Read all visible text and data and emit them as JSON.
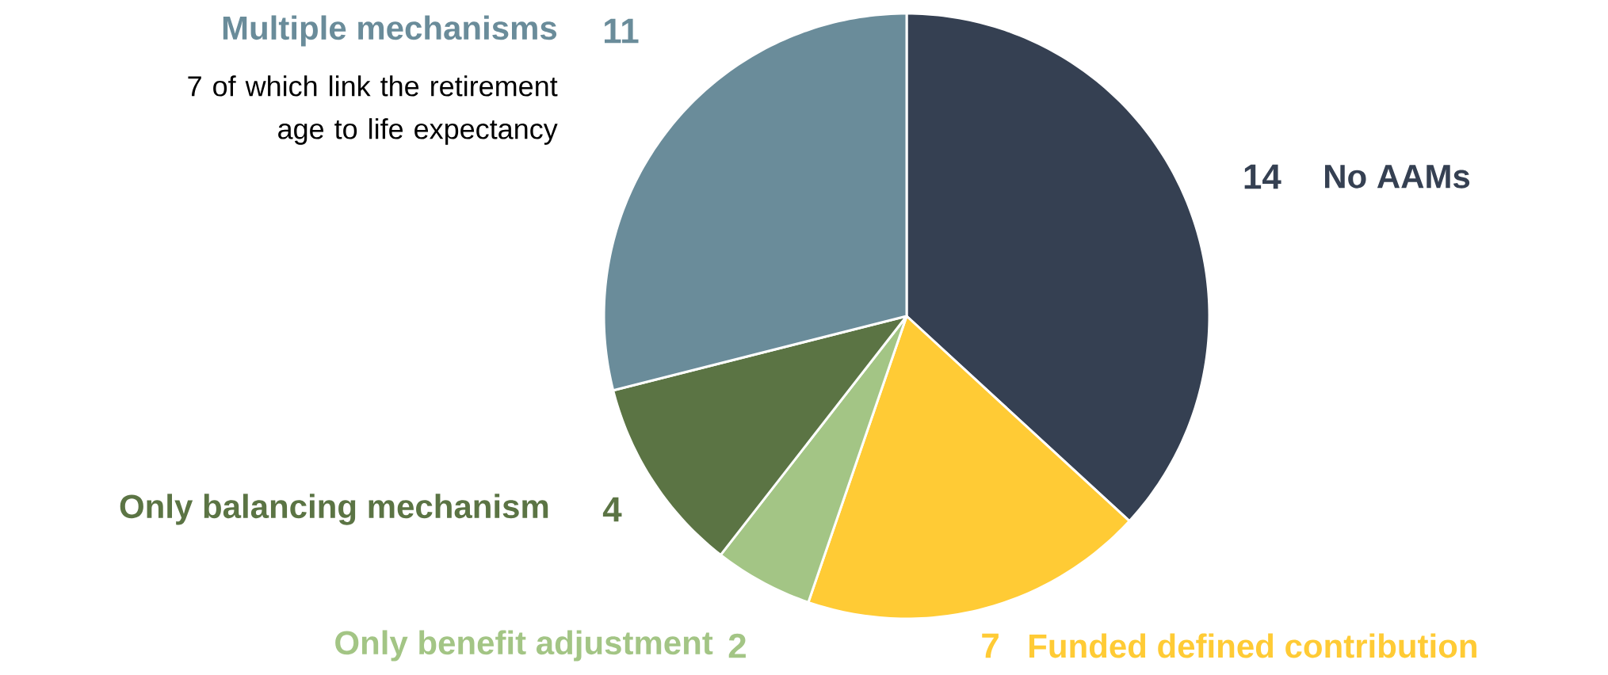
{
  "chart_data": {
    "type": "pie",
    "categories": [
      "No AAMs",
      "Funded defined contribution",
      "Only benefit adjustment",
      "Only balancing mechanism",
      "Multiple mechanisms"
    ],
    "values": [
      14,
      7,
      2,
      4,
      11
    ],
    "colors": [
      "#354052",
      "#ffcb35",
      "#a3c585",
      "#5b7444",
      "#6a8c9a"
    ],
    "data_labels": true,
    "annotations": [
      "7 of which link the retirement age to life expectancy"
    ]
  }
}
